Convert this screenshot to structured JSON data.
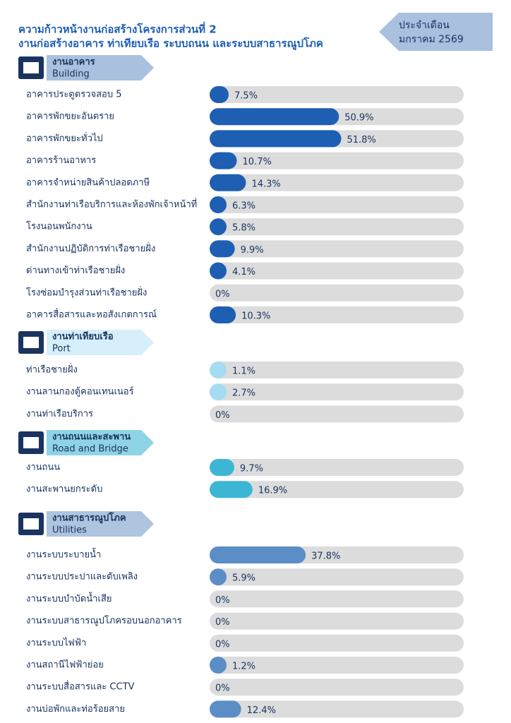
{
  "header": {
    "title": [
      "ความก้าวหน้างานก่อสร้างโครงการส่วนที่ 2",
      "งานก่อสร้างอาคาร ท่าเทียบเรือ ระบบถนน และระบบสาธารณูปโภค"
    ],
    "period": [
      "ประจำเดือน",
      "มกราคม 2569"
    ]
  },
  "chart_data": [
    {
      "type": "bar",
      "orientation": "horizontal",
      "title": "งานอาคาร",
      "subtitle": "Building",
      "color": "#1e5fb4",
      "xlim": [
        0,
        100
      ],
      "categories": [
        "อาคารประตูตรวจสอบ 5",
        "อาคารพักขยะอันตราย",
        "อาคารพักขยะทั่วไป",
        "อาคารร้านอาหาร",
        "อาคารจำหน่ายสินค้าปลอดภาษี",
        "สำนักงานท่าเรือบริการและห้องพักเจ้าหน้าที่",
        "โรงนอนพนักงาน",
        "สำนักงานปฏิบัติการท่าเรือชายฝั่ง",
        "ด่านทางเข้าท่าเรือชายฝั่ง",
        "โรงซ่อมบำรุงส่วนท่าเรือชายฝั่ง",
        "อาคารสื่อสารและหอสังเกตการณ์"
      ],
      "values": [
        7.5,
        50.9,
        51.8,
        10.7,
        14.3,
        6.3,
        5.8,
        9.9,
        4.1,
        0,
        10.3
      ],
      "value_labels": [
        "7.5%",
        "50.9%",
        "51.8%",
        "10.7%",
        "14.3%",
        "6.3%",
        "5.8%",
        "9.9%",
        "4.1%",
        "0%",
        "10.3%"
      ]
    },
    {
      "type": "bar",
      "orientation": "horizontal",
      "title": "งานท่าเทียบเรือ",
      "subtitle": "Port",
      "color": "#a6dcf2",
      "xlim": [
        0,
        100
      ],
      "categories": [
        "ท่าเรือชายฝั่ง",
        "งานลานกองตู้คอนเทนเนอร์",
        "งานท่าเรือบริการ"
      ],
      "values": [
        1.1,
        2.7,
        0
      ],
      "value_labels": [
        "1.1%",
        "2.7%",
        "0%"
      ]
    },
    {
      "type": "bar",
      "orientation": "horizontal",
      "title": "งานถนนและสะพาน",
      "subtitle": "Road and Bridge",
      "color": "#3db6d6",
      "xlim": [
        0,
        100
      ],
      "categories": [
        "งานถนน",
        "งานสะพานยกระดับ"
      ],
      "values": [
        9.7,
        16.9
      ],
      "value_labels": [
        "9.7%",
        "16.9%"
      ]
    },
    {
      "type": "bar",
      "orientation": "horizontal",
      "title": "งานสาธารณูปโภค",
      "subtitle": "Utilities",
      "color": "#5b8dc7",
      "xlim": [
        0,
        100
      ],
      "categories": [
        "งานระบบระบายน้ำ",
        "งานระบบประปาและดับเพลิง",
        "งานระบบบำบัดน้ำเสีย",
        "งานระบบสาธารณูปโภครอบนอกอาคาร",
        "งานระบบไฟฟ้า",
        "งานสถานีไฟฟ้าย่อย",
        "งานระบบสื่อสารและ CCTV",
        "งานบ่อพักและท่อร้อยสาย"
      ],
      "values": [
        37.8,
        5.9,
        0,
        0,
        0,
        1.2,
        0,
        12.4
      ],
      "value_labels": [
        "37.8%",
        "5.9%",
        "0%",
        "0%",
        "0%",
        "1.2%",
        "0%",
        "12.4%"
      ]
    }
  ]
}
